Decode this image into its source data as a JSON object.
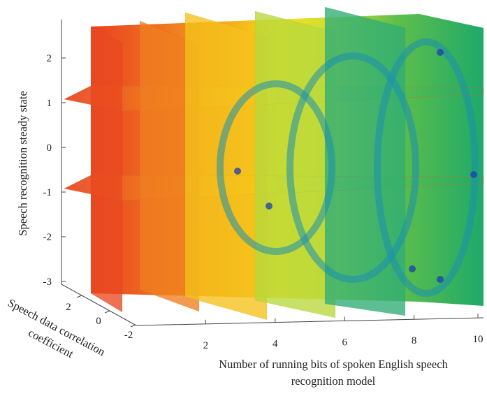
{
  "chart_data": {
    "type": "slice",
    "xlabel_lines": [
      "Number of running bits of spoken English speech",
      "recognition model"
    ],
    "ylabel": "Speech recognition steady state",
    "zlabel_lines": [
      "Speech data correlation",
      "coefficient"
    ],
    "x_ticks": [
      2,
      4,
      6,
      8,
      10
    ],
    "y_ticks": [
      2,
      1,
      0,
      -1,
      -2,
      -3
    ],
    "z_ticks": [
      2,
      0,
      -2
    ],
    "x_range": [
      0,
      10
    ],
    "y_range": [
      -3,
      3
    ],
    "z_range": [
      -2,
      2
    ],
    "x_slices": [
      0,
      2,
      4,
      6,
      8
    ],
    "horizontal_slices": [
      -1,
      1
    ],
    "colormap": [
      "#e83c23",
      "#f07a20",
      "#f5b81c",
      "#f5e81a",
      "#c9e23a",
      "#7fcc3c",
      "#22b28a",
      "#1e9fd0"
    ]
  }
}
